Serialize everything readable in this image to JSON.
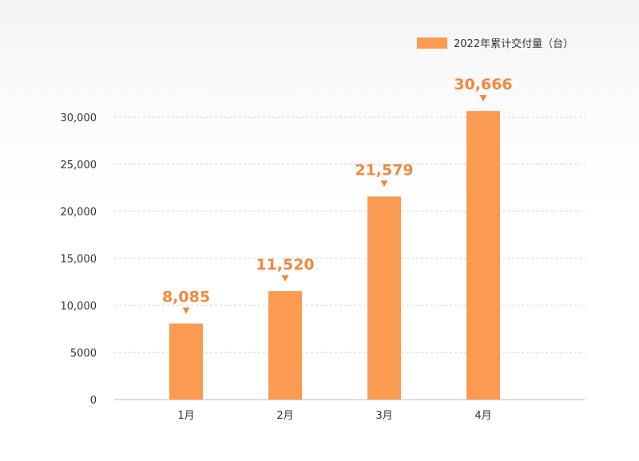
{
  "chart_data": {
    "type": "bar",
    "categories": [
      "1月",
      "2月",
      "3月",
      "4月"
    ],
    "series": [
      {
        "name": "2022年累计交付量（台）",
        "values": [
          8085,
          11520,
          21579,
          30666
        ]
      }
    ],
    "data_labels": [
      "8,085",
      "11,520",
      "21,579",
      "30,666"
    ],
    "y_ticks": [
      0,
      5000,
      10000,
      15000,
      20000,
      25000,
      30000
    ],
    "y_tick_labels": [
      "0",
      "5000",
      "10,000",
      "15,000",
      "20,000",
      "25,000",
      "30,000"
    ],
    "ylim": [
      0,
      33000
    ],
    "grid": true,
    "legend_position": "top-right",
    "colors": {
      "bar": "#fb9a52",
      "label": "#f0883e"
    }
  }
}
